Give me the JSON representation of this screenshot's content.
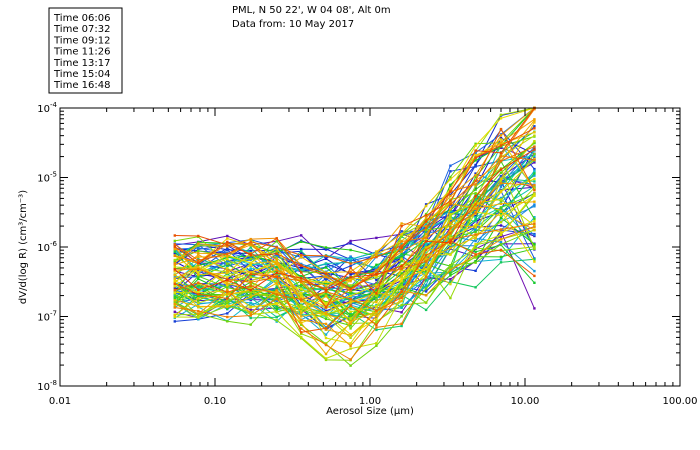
{
  "chart_data": {
    "type": "line",
    "title_lines": [
      "PML, N 50 22', W 04 08', Alt 0m",
      "Data from: 10 May 2017"
    ],
    "xlabel": "Aerosol Size (µm)",
    "ylabel": "dV/d(log R) (cm³/cm⁻³)",
    "xscale": "log",
    "yscale": "log",
    "xlim": [
      0.01,
      100
    ],
    "ylim": [
      1e-08,
      0.0001
    ],
    "x_ticks": [
      0.01,
      0.1,
      1,
      10,
      100
    ],
    "x_tick_labels": [
      "0.01",
      "0.10",
      "1.00",
      "10.00",
      "100.00"
    ],
    "y_ticks": [
      1e-08,
      1e-07,
      1e-06,
      1e-05,
      0.0001
    ],
    "y_tick_base": "10",
    "y_tick_exponents": [
      "-8",
      "-7",
      "-6",
      "-5",
      "-4"
    ],
    "legend": [
      {
        "label": "Time 06:06",
        "color": "#7a0fb0"
      },
      {
        "label": "Time 07:32",
        "color": "#1010c8"
      },
      {
        "label": "Time 09:12",
        "color": "#1c78e6"
      },
      {
        "label": "Time 11:26",
        "color": "#10c8c8"
      },
      {
        "label": "Time 13:17",
        "color": "#18c818"
      },
      {
        "label": "Time 15:04",
        "color": "#8cd80a"
      },
      {
        "label": "Time 16:48",
        "color": "#e8e000"
      }
    ],
    "bin_centers_um": [
      0.055,
      0.078,
      0.12,
      0.17,
      0.25,
      0.36,
      0.52,
      0.75,
      1.1,
      1.6,
      2.3,
      3.3,
      4.8,
      7.0,
      11.5
    ],
    "series_count": 90,
    "series_color_stops": [
      "#7a0fb0",
      "#1010c8",
      "#1c78e6",
      "#10c8c8",
      "#18c818",
      "#8cd80a",
      "#e8e000",
      "#f0a000",
      "#e84000"
    ]
  }
}
